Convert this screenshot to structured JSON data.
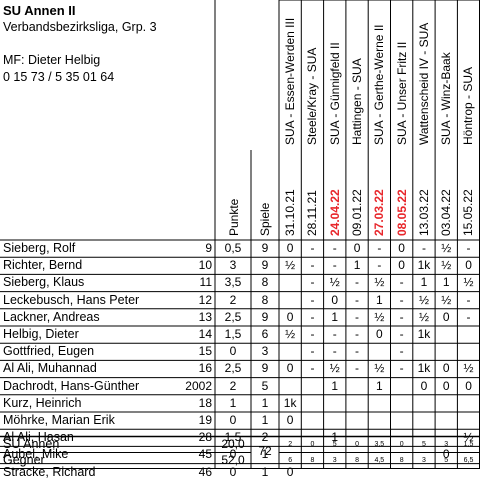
{
  "header": {
    "team": "SU Annen II",
    "league": "Verbandsbezirksliga, Grp. 3",
    "captain": "MF: Dieter Helbig",
    "phone": "0 15 73 / 5 35 01 64"
  },
  "columns": {
    "points": "Punkte",
    "games": "Spiele"
  },
  "matches": [
    {
      "date": "31.10.21",
      "opponent": "SUA - Essen-Werden III",
      "highlight": false
    },
    {
      "date": "28.11.21",
      "opponent": "Steele/Kray - SUA",
      "highlight": false
    },
    {
      "date": "24.04.22",
      "opponent": "SUA - Günnigfeld II",
      "highlight": true
    },
    {
      "date": "09.01.22",
      "opponent": "Hattingen - SUA",
      "highlight": false
    },
    {
      "date": "27.03.22",
      "opponent": "SUA - Gerthe-Werne II",
      "highlight": true
    },
    {
      "date": "08.05.22",
      "opponent": "SUA - Unser Fritz II",
      "highlight": true
    },
    {
      "date": "13.03.22",
      "opponent": "Wattenscheid IV - SUA",
      "highlight": false
    },
    {
      "date": "03.04.22",
      "opponent": "SUA - Winz-Baak",
      "highlight": false
    },
    {
      "date": "15.05.22",
      "opponent": "Höntrop - SUA",
      "highlight": false
    }
  ],
  "players": [
    {
      "name": "Sieberg, Rolf",
      "no": "9",
      "points": "0,5",
      "games": "9",
      "results": [
        "0",
        "-",
        "-",
        "0",
        "-",
        "0",
        "-",
        "½",
        "-"
      ]
    },
    {
      "name": "Richter, Bernd",
      "no": "10",
      "points": "3",
      "games": "9",
      "results": [
        "½",
        "-",
        "-",
        "1",
        "-",
        "0",
        "1k",
        "½",
        "0"
      ]
    },
    {
      "name": "Sieberg, Klaus",
      "no": "11",
      "points": "3,5",
      "games": "8",
      "results": [
        "",
        "-",
        "½",
        "-",
        "½",
        "-",
        "1",
        "1",
        "½"
      ]
    },
    {
      "name": "Leckebusch, Hans Peter",
      "no": "12",
      "points": "2",
      "games": "8",
      "results": [
        "",
        "-",
        "0",
        "-",
        "1",
        "-",
        "½",
        "½",
        "-"
      ]
    },
    {
      "name": "Lackner, Andreas",
      "no": "13",
      "points": "2,5",
      "games": "9",
      "results": [
        "0",
        "-",
        "1",
        "-",
        "½",
        "-",
        "½",
        "0",
        "-"
      ]
    },
    {
      "name": "Helbig, Dieter",
      "no": "14",
      "points": "1,5",
      "games": "6",
      "results": [
        "½",
        "-",
        "-",
        "-",
        "0",
        "-",
        "1k",
        "",
        ""
      ]
    },
    {
      "name": "Gottfried, Eugen",
      "no": "15",
      "points": "0",
      "games": "3",
      "results": [
        "",
        "-",
        "-",
        "-",
        "",
        "-",
        "",
        "",
        ""
      ]
    },
    {
      "name": "Al Ali, Muhannad",
      "no": "16",
      "points": "2,5",
      "games": "9",
      "results": [
        "0",
        "-",
        "½",
        "-",
        "½",
        "-",
        "1k",
        "0",
        "½"
      ]
    },
    {
      "name": "Dachrodt, Hans-Günther",
      "no": "2002",
      "points": "2",
      "games": "5",
      "results": [
        "",
        "",
        "1",
        "",
        "1",
        "",
        "0",
        "0",
        "0"
      ]
    },
    {
      "name": "Kurz, Heinrich",
      "no": "18",
      "points": "1",
      "games": "1",
      "results": [
        "1k",
        "",
        "",
        "",
        "",
        "",
        "",
        "",
        ""
      ]
    },
    {
      "name": "Möhrke, Marian Erik",
      "no": "19",
      "points": "0",
      "games": "1",
      "results": [
        "0",
        "",
        "",
        "",
        "",
        "",
        "",
        "",
        ""
      ]
    },
    {
      "name": "Al Ali, Hasan",
      "no": "28",
      "points": "1,5",
      "games": "2",
      "results": [
        "",
        "",
        "1",
        "",
        "",
        "",
        "",
        "",
        "½"
      ]
    },
    {
      "name": "Aubel, Mike",
      "no": "45",
      "points": "0",
      "games": "1",
      "results": [
        "",
        "",
        "",
        "",
        "",
        "",
        "",
        "0",
        ""
      ]
    },
    {
      "name": "Stracke, Richard",
      "no": "46",
      "points": "0",
      "games": "1",
      "results": [
        "0",
        "",
        "",
        "",
        "",
        "",
        "",
        "",
        ""
      ]
    }
  ],
  "totals": {
    "games_total": "72",
    "rows": [
      {
        "name": "SU Annen",
        "points": "20,0",
        "results": [
          "2",
          "0",
          "5",
          "0",
          "3,5",
          "0",
          "5",
          "3",
          "1,5"
        ]
      },
      {
        "name": "Gegner",
        "points": "52,0",
        "results": [
          "6",
          "8",
          "3",
          "8",
          "4,5",
          "8",
          "3",
          "5",
          "6,5"
        ]
      }
    ]
  }
}
